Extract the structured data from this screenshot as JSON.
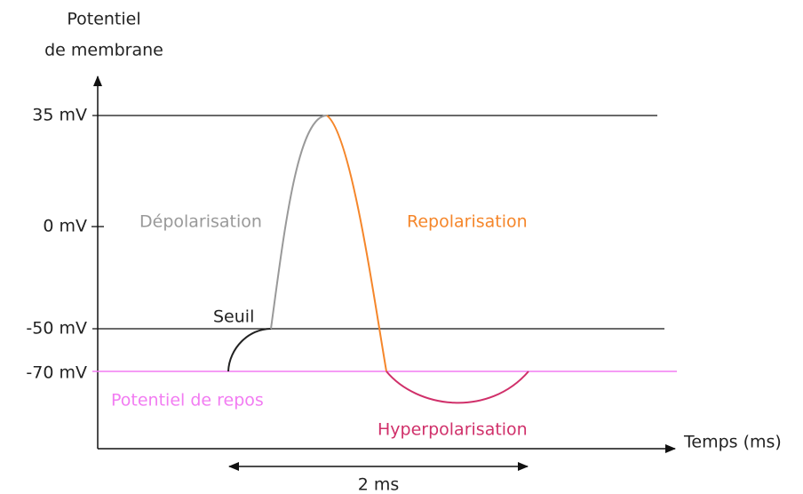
{
  "axis": {
    "y_label_line1": "Potentiel",
    "y_label_line2": "de membrane",
    "x_label": "Temps (ms)",
    "y_ticks": [
      "35 mV",
      "0 mV",
      "-50 mV",
      "-70 mV"
    ]
  },
  "labels": {
    "depolarisation": "Dépolarisation",
    "repolarisation": "Repolarisation",
    "seuil": "Seuil",
    "repos": "Potentiel de repos",
    "hyperpolarisation": "Hyperpolarisation",
    "duration": "2 ms"
  }
}
